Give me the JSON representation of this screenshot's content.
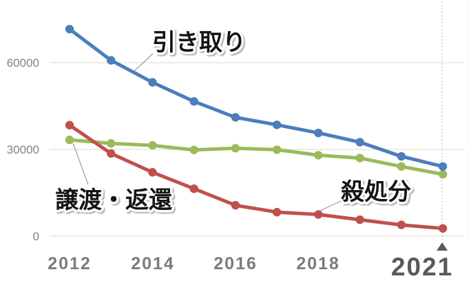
{
  "chart_data": {
    "type": "line",
    "x": [
      2012,
      2013,
      2014,
      2015,
      2016,
      2017,
      2018,
      2019,
      2020,
      2021
    ],
    "series": [
      {
        "name": "引き取り",
        "color": "#4A7EBD",
        "values": [
          71600,
          60800,
          53200,
          46600,
          41100,
          38500,
          35700,
          32500,
          27600,
          24100
        ]
      },
      {
        "name": "譲渡・返還",
        "color": "#9BBA59",
        "values": [
          33300,
          32100,
          31400,
          29800,
          30400,
          29900,
          28000,
          27000,
          24100,
          21400
        ]
      },
      {
        "name": "殺処分",
        "color": "#C0504D",
        "values": [
          38400,
          28600,
          22100,
          16400,
          10700,
          8300,
          7500,
          5700,
          3900,
          2700
        ]
      }
    ],
    "ylim": [
      0,
      75000
    ],
    "yticks": [
      {
        "value": 60000,
        "label": "60000"
      },
      {
        "value": 30000,
        "label": "30000"
      },
      {
        "value": 0,
        "label": "0"
      }
    ],
    "xticks": [
      {
        "year": 2012,
        "label": "2012"
      },
      {
        "year": 2014,
        "label": "2014"
      },
      {
        "year": 2016,
        "label": "2016"
      },
      {
        "year": 2018,
        "label": "2018"
      }
    ],
    "highlight_xtick": {
      "year": 2021,
      "label": "2021",
      "marker": "▲"
    },
    "grid": "horizontal-only",
    "legend": "inline-annotations",
    "annotations": [
      {
        "id": "intake",
        "text": "引き取り"
      },
      {
        "id": "transfer",
        "text": "譲渡・返還"
      },
      {
        "id": "cull",
        "text": "殺処分"
      }
    ],
    "colors": {
      "grid": "#d9d9d9",
      "axis_text": "#7b7b7b",
      "highlight_text": "#595959",
      "annotation_text": "#141414",
      "annotation_outline": "#ffffff"
    }
  }
}
